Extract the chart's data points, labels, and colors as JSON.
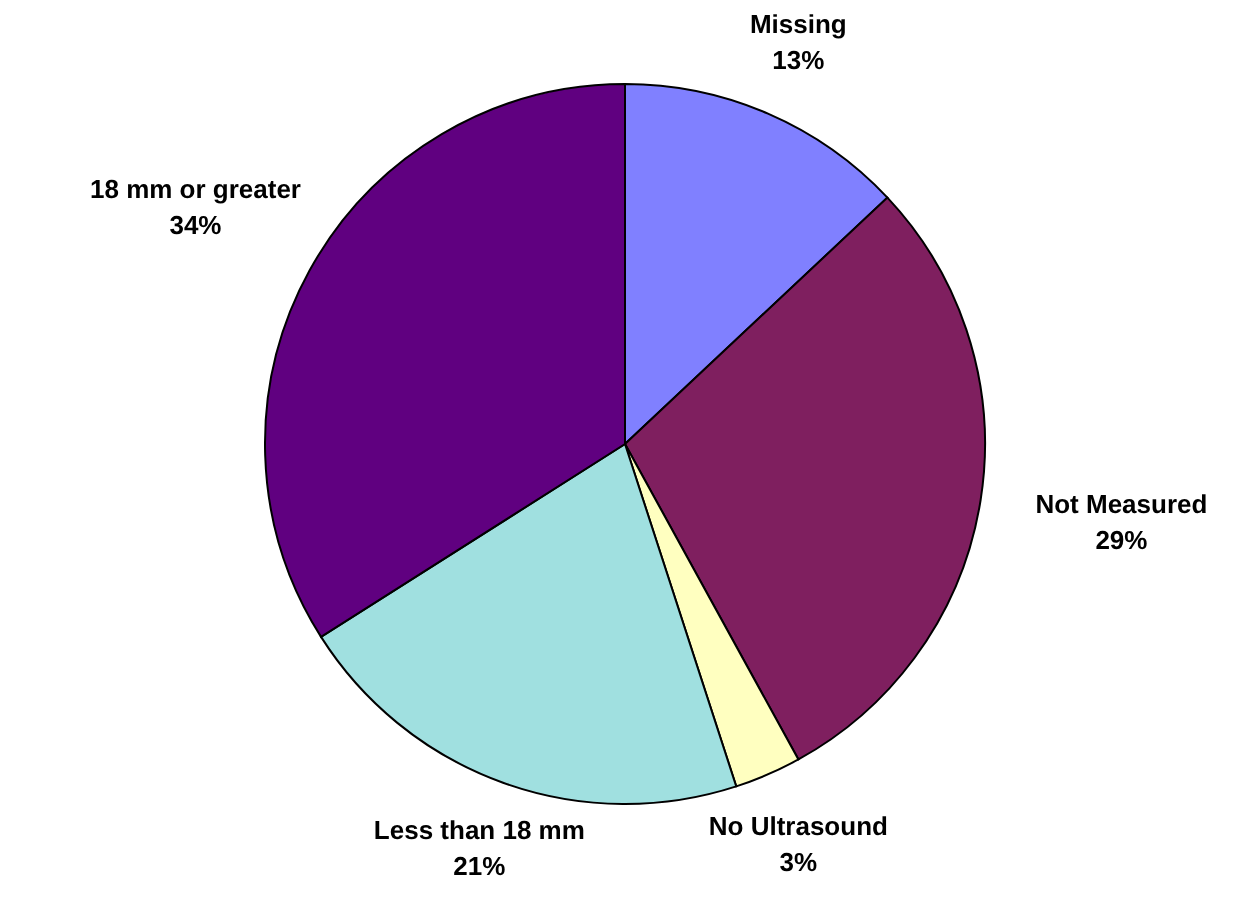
{
  "chart_data": {
    "type": "pie",
    "categories": [
      "Missing",
      "Not Measured",
      "No Ultrasound",
      "Less than 18 mm",
      "18 mm or greater"
    ],
    "values": [
      13,
      29,
      3,
      21,
      34
    ],
    "value_labels": [
      "13%",
      "29%",
      "3%",
      "21%",
      "34%"
    ],
    "colors": [
      "#8080ff",
      "#7f1f5f",
      "#ffffc0",
      "#a0e0e0",
      "#600080"
    ]
  }
}
